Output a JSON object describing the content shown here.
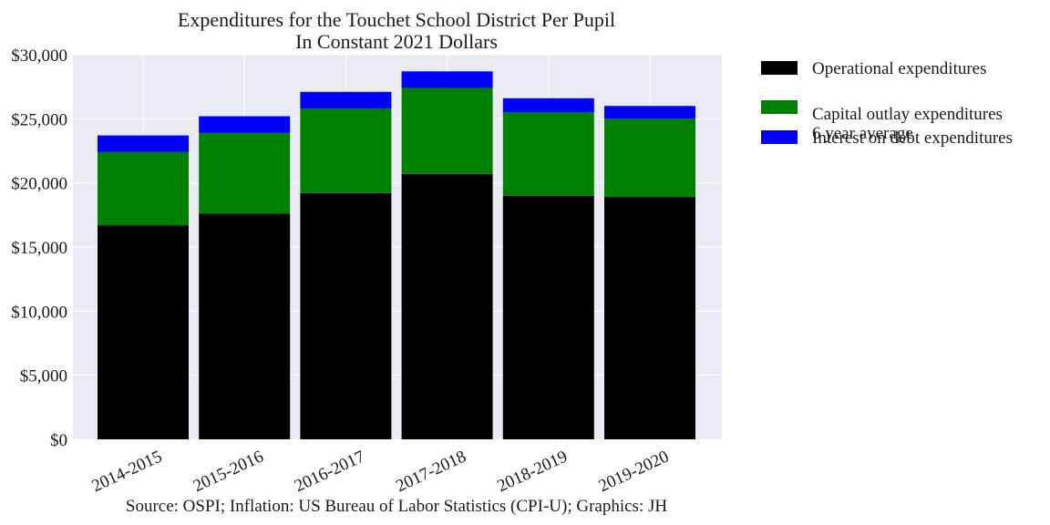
{
  "chart_data": {
    "type": "bar",
    "stacked": true,
    "title_line1": "Expenditures for the Touchet School District Per Pupil",
    "title_line2": "In Constant 2021 Dollars",
    "source": "Source: OSPI; Inflation: US Bureau of Labor Statistics (CPI-U); Graphics: JH",
    "categories": [
      "2014-2015",
      "2015-2016",
      "2016-2017",
      "2017-2018",
      "2018-2019",
      "2019-2020"
    ],
    "series": [
      {
        "name": "Operational expenditures",
        "color": "#000000",
        "values": [
          16700,
          17600,
          19200,
          20700,
          19000,
          18900
        ]
      },
      {
        "name": "Capital outlay expenditures\n6 year average",
        "color": "#008000",
        "values": [
          5700,
          6300,
          6600,
          6700,
          6500,
          6100
        ]
      },
      {
        "name": "Interest on debt expenditures",
        "color": "#0000ff",
        "values": [
          1300,
          1300,
          1300,
          1300,
          1100,
          1000
        ]
      }
    ],
    "ylim": [
      0,
      30000
    ],
    "yticks": [
      0,
      5000,
      10000,
      15000,
      20000,
      25000,
      30000
    ],
    "ytick_labels": [
      "$0",
      "$5,000",
      "$10,000",
      "$15,000",
      "$20,000",
      "$25,000",
      "$30,000"
    ],
    "grid": true,
    "background": "#eaeaf2",
    "legend_position": "outside-right-top"
  }
}
